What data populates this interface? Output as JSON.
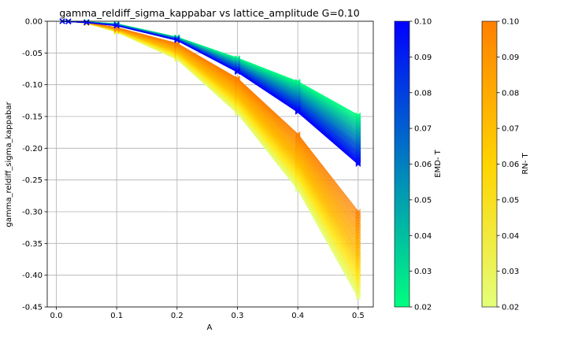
{
  "chart_data": {
    "type": "line",
    "title": "gamma_reldiff_sigma_kappabar vs lattice_amplitude G=0.10",
    "xlabel": "A",
    "ylabel": "gamma_reldiff_sigma_kappabar",
    "xlim": [
      -0.015,
      0.525
    ],
    "ylim": [
      -0.45,
      0.0
    ],
    "xticks": [
      0.0,
      0.1,
      0.2,
      0.3,
      0.4,
      0.5
    ],
    "xtick_labels": [
      "0.0",
      "0.1",
      "0.2",
      "0.3",
      "0.4",
      "0.5"
    ],
    "yticks": [
      0.0,
      -0.05,
      -0.1,
      -0.15,
      -0.2,
      -0.25,
      -0.3,
      -0.35,
      -0.4,
      -0.45
    ],
    "ytick_labels": [
      "0.00",
      "-0.05",
      "-0.10",
      "-0.15",
      "-0.20",
      "-0.25",
      "-0.30",
      "-0.35",
      "-0.40",
      "-0.45"
    ],
    "grid": true,
    "x": [
      0.01,
      0.02,
      0.05,
      0.1,
      0.2,
      0.3,
      0.4,
      0.5
    ],
    "families": [
      {
        "name": "EMD",
        "marker": "x",
        "colormap": "winter_r",
        "T_range": [
          0.02,
          0.1
        ],
        "curve_count": 41,
        "values_at_T_min": [
          0.0,
          0.0,
          -0.001,
          -0.004,
          -0.025,
          -0.058,
          -0.095,
          -0.148
        ],
        "values_at_T_max": [
          0.0,
          -0.0005,
          -0.002,
          -0.007,
          -0.03,
          -0.08,
          -0.143,
          -0.225
        ]
      },
      {
        "name": "RN",
        "marker": "x",
        "colormap": "Wistia",
        "T_range": [
          0.02,
          0.1
        ],
        "curve_count": 41,
        "values_at_T_min": [
          0.0,
          0.0,
          -0.003,
          -0.017,
          -0.06,
          -0.145,
          -0.265,
          -0.435
        ],
        "values_at_T_max": [
          0.0,
          0.0,
          -0.002,
          -0.01,
          -0.035,
          -0.09,
          -0.178,
          -0.3
        ]
      }
    ],
    "colorbars": [
      {
        "label": "EMD- T",
        "range": [
          0.02,
          0.1
        ],
        "ticks": [
          "0.10",
          "0.09",
          "0.08",
          "0.07",
          "0.06",
          "0.05",
          "0.04",
          "0.03",
          "0.02"
        ],
        "color_low": "#00ff80",
        "color_high": "#0000ff"
      },
      {
        "label": "RN- T",
        "range": [
          0.02,
          0.1
        ],
        "ticks": [
          "0.10",
          "0.09",
          "0.08",
          "0.07",
          "0.06",
          "0.05",
          "0.04",
          "0.03",
          "0.02"
        ],
        "color_low": "#e4ff7a",
        "color_high": "#ff8000"
      }
    ]
  }
}
